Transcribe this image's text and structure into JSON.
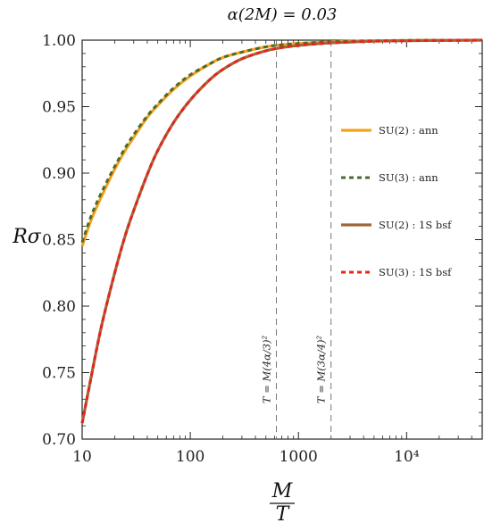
{
  "chart_data": {
    "type": "line",
    "title": "α(2M) = 0.03",
    "xlabel_num": "M",
    "xlabel_den": "T",
    "ylabel": "Rσ",
    "xscale": "log",
    "xlim": [
      10,
      50000
    ],
    "ylim": [
      0.7,
      1.0
    ],
    "grid": false,
    "legend_placement": "right",
    "x_ticks": [
      {
        "value": 10,
        "label": "10"
      },
      {
        "value": 100,
        "label": "100"
      },
      {
        "value": 1000,
        "label": "1000"
      },
      {
        "value": 10000,
        "label": "10⁴"
      }
    ],
    "y_ticks": [
      {
        "value": 0.7,
        "label": "0.70"
      },
      {
        "value": 0.75,
        "label": "0.75"
      },
      {
        "value": 0.8,
        "label": "0.80"
      },
      {
        "value": 0.85,
        "label": "0.85"
      },
      {
        "value": 0.9,
        "label": "0.90"
      },
      {
        "value": 0.95,
        "label": "0.95"
      },
      {
        "value": 1.0,
        "label": "1.00"
      }
    ],
    "vlines": [
      {
        "x": 625,
        "label": "T = M(4α/3)²"
      },
      {
        "x": 2000,
        "label": "T = M(3α/4)²"
      }
    ],
    "x": [
      10,
      12,
      15,
      20,
      25,
      30,
      40,
      50,
      70,
      100,
      150,
      200,
      300,
      500,
      700,
      1000,
      1500,
      2000,
      3000,
      5000,
      10000,
      20000,
      50000
    ],
    "series": [
      {
        "name": "SU(2) : ann",
        "color": "#f5a21b",
        "dash": "solid",
        "width": 3.2,
        "values": [
          0.845,
          0.864,
          0.882,
          0.903,
          0.917,
          0.927,
          0.942,
          0.951,
          0.963,
          0.973,
          0.982,
          0.987,
          0.991,
          0.995,
          0.9965,
          0.9975,
          0.9983,
          0.9988,
          0.9992,
          0.9995,
          0.9998,
          0.9999,
          1.0
        ]
      },
      {
        "name": "SU(3) : ann",
        "color": "#4a6b2c",
        "dash": "5,4",
        "width": 3,
        "values": [
          0.848,
          0.867,
          0.885,
          0.905,
          0.919,
          0.929,
          0.943,
          0.952,
          0.964,
          0.974,
          0.982,
          0.987,
          0.991,
          0.995,
          0.9965,
          0.9975,
          0.9983,
          0.9988,
          0.9992,
          0.9995,
          0.9998,
          0.9999,
          1.0
        ]
      },
      {
        "name": "SU(2) : 1S bsf",
        "color": "#a0663a",
        "dash": "solid",
        "width": 3.2,
        "values": [
          0.712,
          0.745,
          0.784,
          0.825,
          0.853,
          0.872,
          0.899,
          0.917,
          0.938,
          0.955,
          0.97,
          0.978,
          0.986,
          0.992,
          0.9944,
          0.996,
          0.9973,
          0.998,
          0.9986,
          0.9992,
          0.9996,
          0.9998,
          1.0
        ]
      },
      {
        "name": "SU(3) : 1S bsf",
        "color": "#e8231c",
        "dash": "5,4",
        "width": 3,
        "values": [
          0.712,
          0.745,
          0.784,
          0.825,
          0.853,
          0.872,
          0.899,
          0.917,
          0.938,
          0.955,
          0.97,
          0.978,
          0.986,
          0.992,
          0.9944,
          0.996,
          0.9973,
          0.998,
          0.9986,
          0.9992,
          0.9996,
          0.9998,
          1.0
        ]
      }
    ]
  }
}
